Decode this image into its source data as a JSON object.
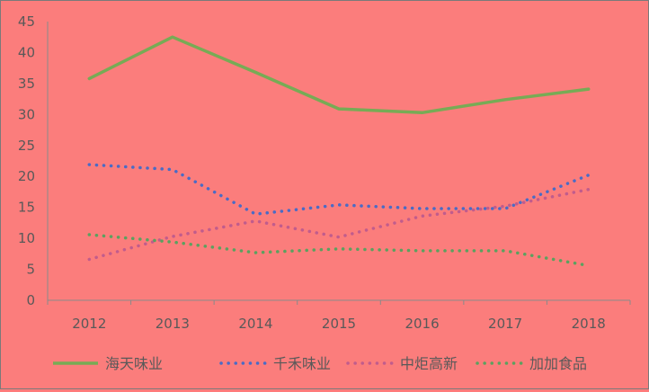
{
  "chart_data": {
    "type": "line",
    "title": "",
    "xlabel": "",
    "ylabel": "",
    "categories": [
      "2012",
      "2013",
      "2014",
      "2015",
      "2016",
      "2017",
      "2018"
    ],
    "ylim": [
      0,
      45
    ],
    "yticks": [
      0,
      5,
      10,
      15,
      20,
      25,
      30,
      35,
      40,
      45
    ],
    "grid": false,
    "legend_position": "bottom",
    "series": [
      {
        "name": "海天味业",
        "values": [
          35.8,
          42.5,
          36.8,
          30.9,
          30.3,
          32.4,
          34.1
        ],
        "color": "#77ab55",
        "dash": "solid"
      },
      {
        "name": "千禾味业",
        "values": [
          21.9,
          21.1,
          13.9,
          15.4,
          14.8,
          14.8,
          20.2
        ],
        "color": "#4a6bc5",
        "dash": "dotted"
      },
      {
        "name": "中炬高新",
        "values": [
          6.6,
          10.3,
          12.8,
          10.2,
          13.6,
          15.2,
          17.9
        ],
        "color": "#c15c8c",
        "dash": "dotted"
      },
      {
        "name": "加加食品",
        "values": [
          10.6,
          9.4,
          7.7,
          8.3,
          8.0,
          8.0,
          5.6
        ],
        "color": "#5ba15f",
        "dash": "dotted"
      }
    ]
  }
}
